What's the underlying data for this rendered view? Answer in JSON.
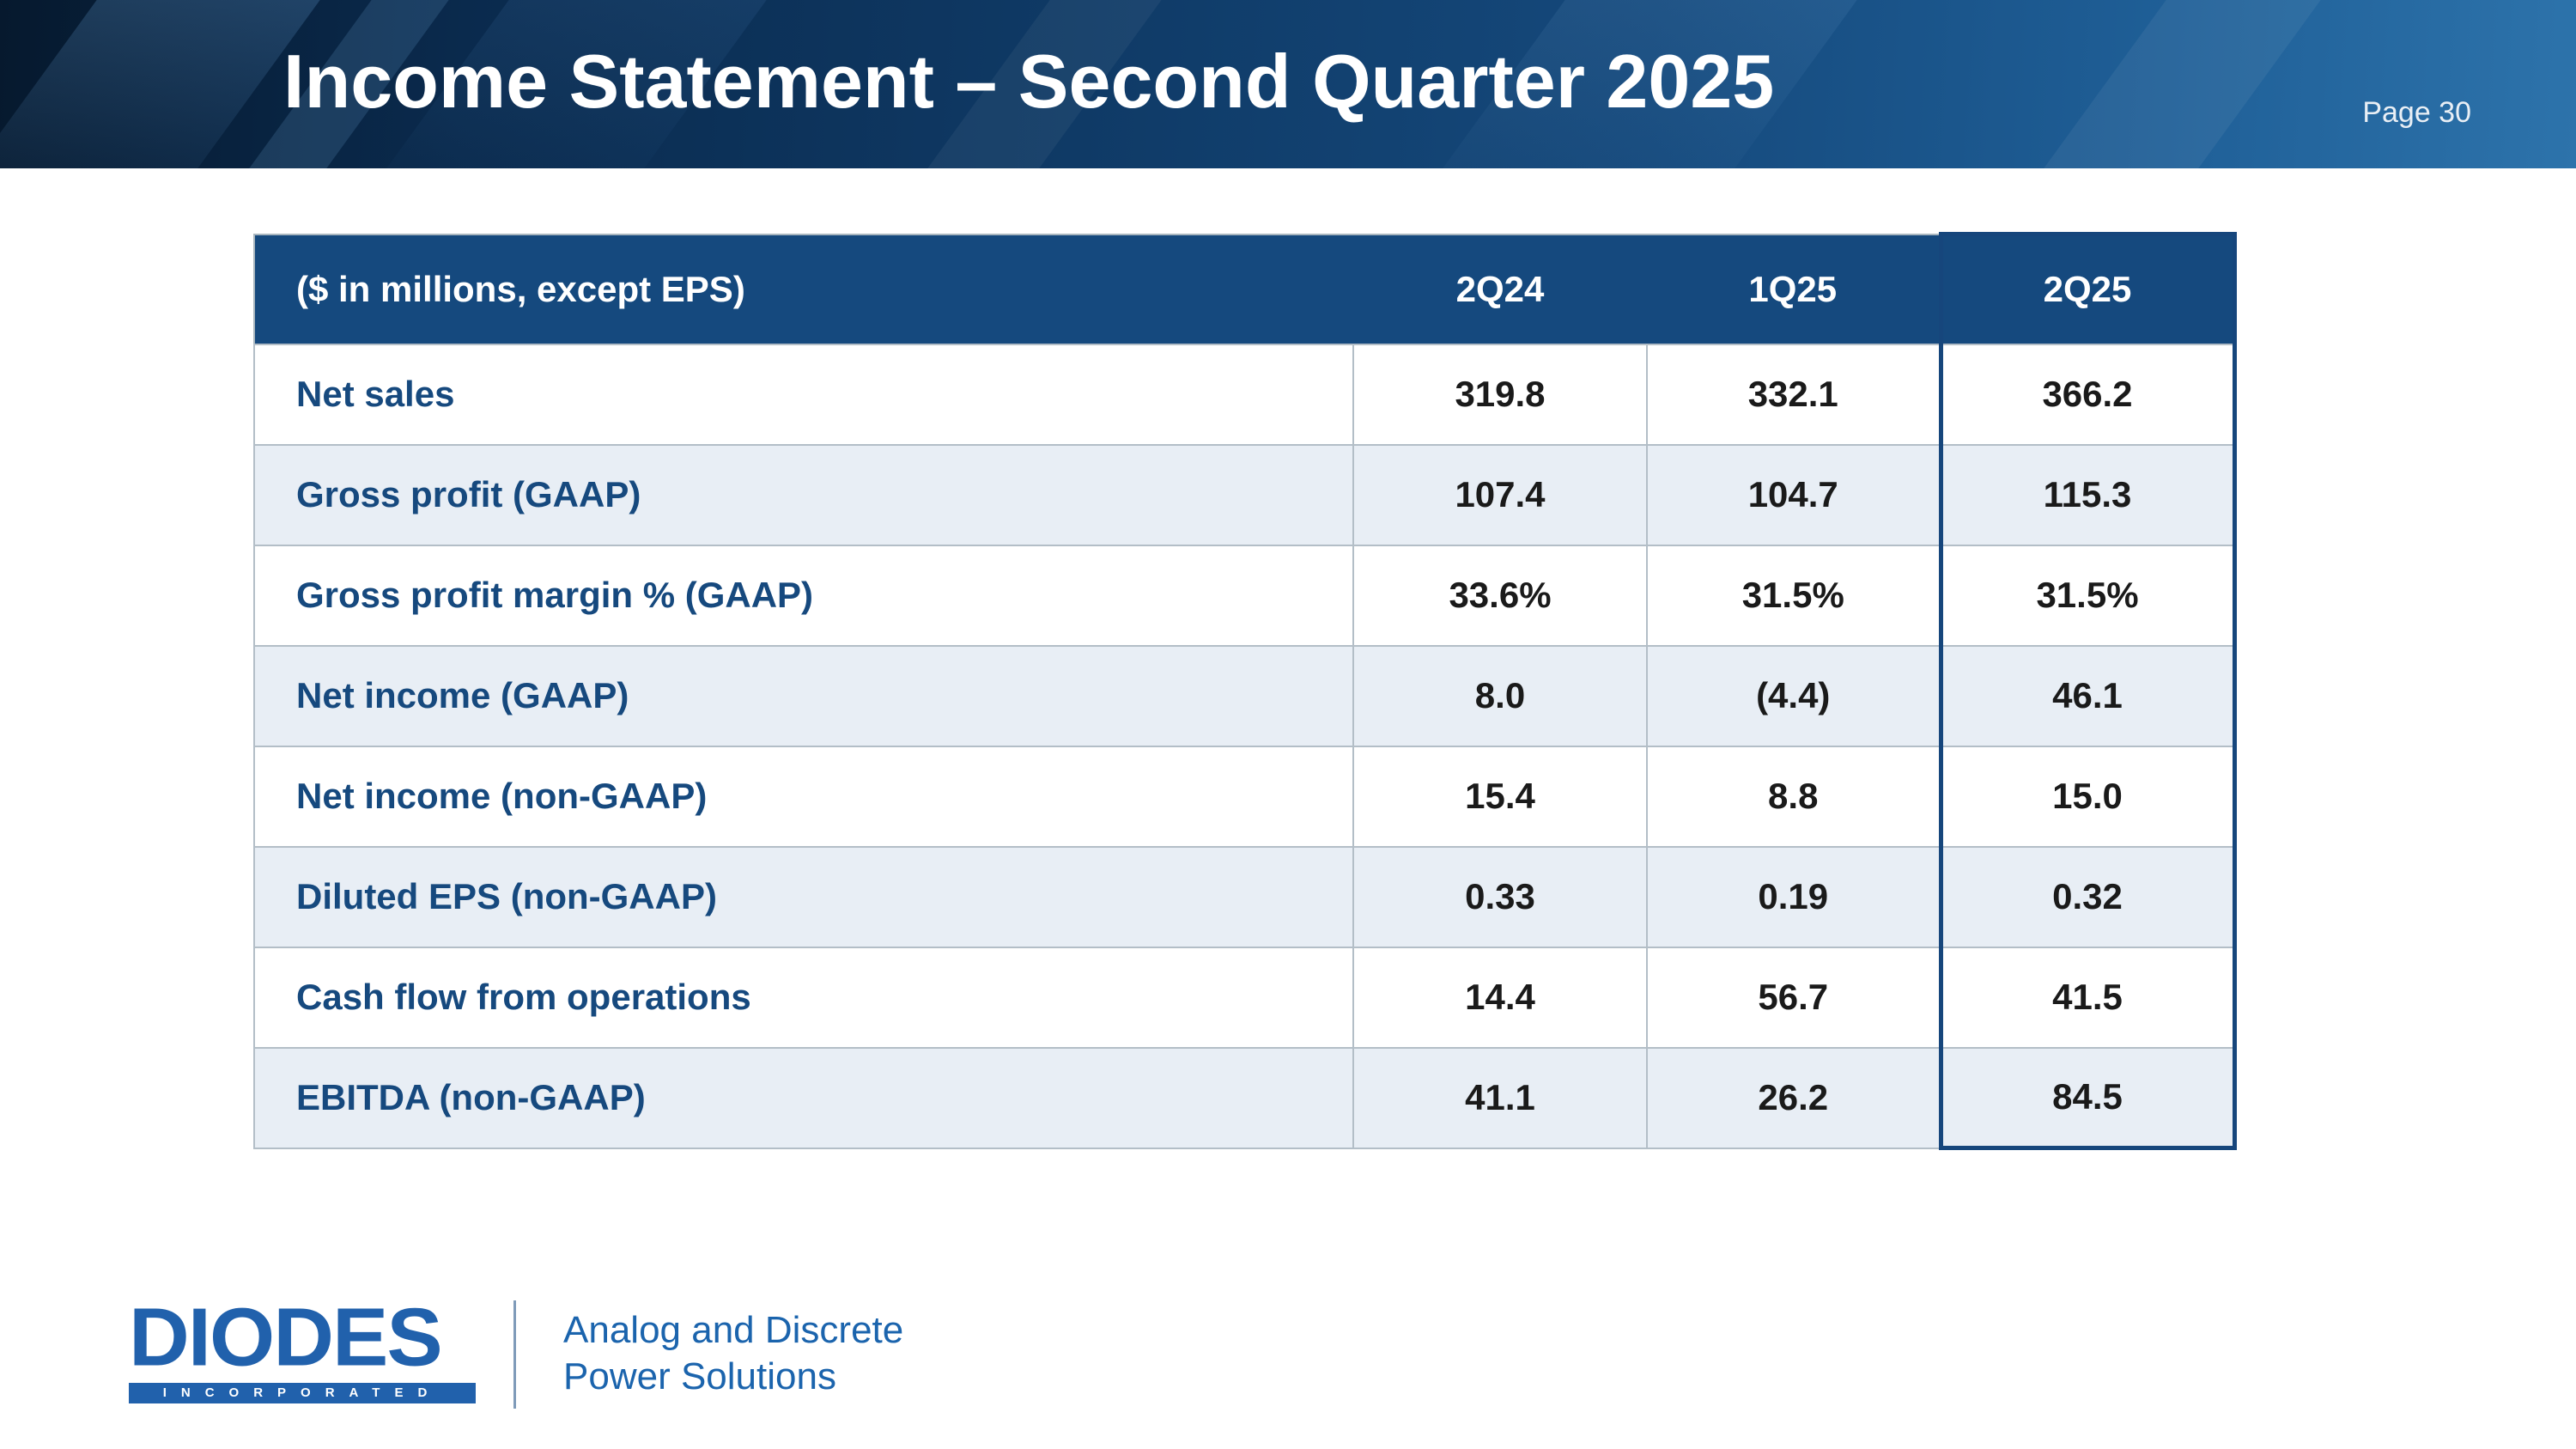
{
  "header": {
    "title": "Income Statement – Second Quarter 2025",
    "page_label": "Page 30"
  },
  "table": {
    "caption": "($ in millions, except EPS)",
    "columns": [
      "2Q24",
      "1Q25",
      "2Q25"
    ],
    "highlighted_column": "2Q25",
    "rows": [
      {
        "label": "Net sales",
        "values": [
          "319.8",
          "332.1",
          "366.2"
        ]
      },
      {
        "label": "Gross profit (GAAP)",
        "values": [
          "107.4",
          "104.7",
          "115.3"
        ]
      },
      {
        "label": "Gross profit margin % (GAAP)",
        "values": [
          "33.6%",
          "31.5%",
          "31.5%"
        ]
      },
      {
        "label": "Net income (GAAP)",
        "values": [
          "8.0",
          "(4.4)",
          "46.1"
        ]
      },
      {
        "label": "Net income (non-GAAP)",
        "values": [
          "15.4",
          "8.8",
          "15.0"
        ]
      },
      {
        "label": "Diluted EPS (non-GAAP)",
        "values": [
          "0.33",
          "0.19",
          "0.32"
        ]
      },
      {
        "label": "Cash flow from operations",
        "values": [
          "14.4",
          "56.7",
          "41.5"
        ]
      },
      {
        "label": "EBITDA (non-GAAP)",
        "values": [
          "41.1",
          "26.2",
          "84.5"
        ]
      }
    ]
  },
  "footer": {
    "logo_text": "DIODES",
    "logo_subtext": "INCORPORATED",
    "tagline_line1": "Analog and Discrete",
    "tagline_line2": "Power Solutions"
  },
  "colors": {
    "banner_dark": "#0a2a4d",
    "banner_light": "#2d73ab",
    "table_header_bg": "#15497e",
    "row_alt_bg": "#e8eef5",
    "label_blue": "#16497e",
    "value_color": "#1a1a1a",
    "highlight_border": "#16467c",
    "logo_blue": "#2161ac",
    "tagline_blue": "#1b64ad"
  }
}
